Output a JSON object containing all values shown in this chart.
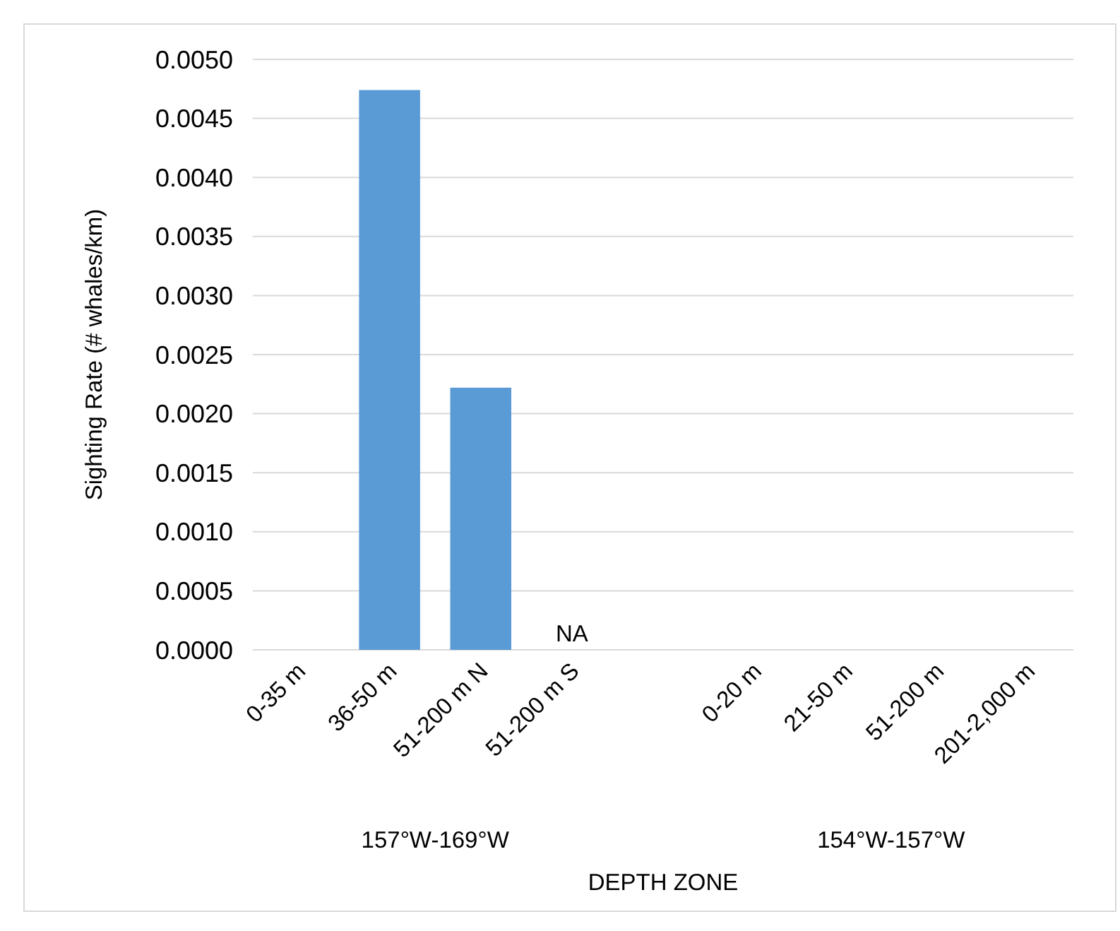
{
  "chart_data": {
    "type": "bar",
    "xlabel": "DEPTH ZONE",
    "ylabel": "Sighting Rate (# whales/km)",
    "categories": [
      "0-35 m",
      "36-50 m",
      "51-200 m N",
      "51-200 m S",
      null,
      "0-20 m",
      "21-50 m",
      "51-200 m",
      "201-2,000 m"
    ],
    "values": [
      0,
      0.00474,
      0.00222,
      null,
      null,
      0,
      0,
      0,
      0
    ],
    "color": "#5b9bd5",
    "ylim": [
      0,
      0.005
    ],
    "yticks": [
      {
        "value": 0,
        "label": "0.0000"
      },
      {
        "value": 0.0005,
        "label": "0.0005"
      },
      {
        "value": 0.001,
        "label": "0.0010"
      },
      {
        "value": 0.0015,
        "label": "0.0015"
      },
      {
        "value": 0.002,
        "label": "0.0020"
      },
      {
        "value": 0.0025,
        "label": "0.0025"
      },
      {
        "value": 0.003,
        "label": "0.0030"
      },
      {
        "value": 0.0035,
        "label": "0.0035"
      },
      {
        "value": 0.004,
        "label": "0.0040"
      },
      {
        "value": 0.0045,
        "label": "0.0045"
      },
      {
        "value": 0.005,
        "label": "0.0050"
      }
    ],
    "grid": "y",
    "annotations": [
      "NA",
      "157°W-169°W",
      "154°W-157°W"
    ]
  }
}
